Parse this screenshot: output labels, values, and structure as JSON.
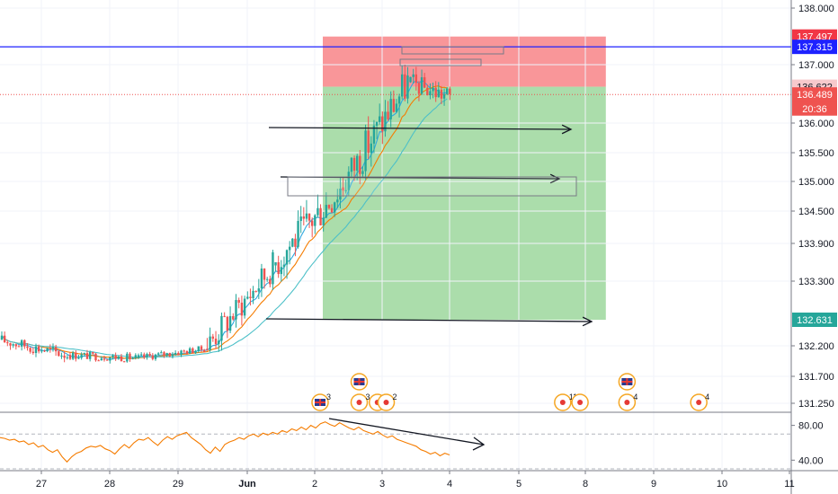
{
  "chart_data": {
    "type": "candlestick",
    "price_axis": {
      "ticks": [
        "138.000",
        "137.000",
        "136.000",
        "135.500",
        "135.000",
        "134.500",
        "133.900",
        "133.300",
        "132.200",
        "131.700",
        "131.250"
      ],
      "tick_values": [
        138.0,
        137.0,
        136.0,
        135.5,
        135.0,
        134.5,
        133.9,
        133.3,
        132.2,
        131.7,
        131.25
      ],
      "range": [
        131.15,
        138.2
      ]
    },
    "time_axis": {
      "ticks": [
        "27",
        "28",
        "29",
        "Jun",
        "2",
        "3",
        "4",
        "5",
        "8",
        "9",
        "10",
        "11"
      ],
      "bold": [
        "Jun"
      ]
    },
    "price_tags": [
      {
        "text": "137.497",
        "value": 137.497,
        "color": "#f23645"
      },
      {
        "text": "137.315",
        "value": 137.315,
        "color": "#1e22ff"
      },
      {
        "text": "136.622",
        "value": 136.622,
        "color": "#f7c9cc",
        "text_color": "#131722"
      },
      {
        "text": "136.489",
        "value": 136.489,
        "color": "#ef5350"
      },
      {
        "text": "20:36",
        "value": 136.25,
        "color": "#ef5350"
      },
      {
        "text": "132.631",
        "value": 132.631,
        "color": "#26a69a"
      }
    ],
    "horizontal_line": {
      "value": 137.315,
      "color": "#1e22ff"
    },
    "current_price_line": {
      "value": 136.489,
      "color": "#ef5350"
    },
    "position": {
      "side": "short",
      "entry": 136.622,
      "stop": 137.497,
      "target": 132.631,
      "start_day": 4.12,
      "end_day": 8.3
    },
    "moving_averages": [
      {
        "color": "#2ea8e0"
      },
      {
        "color": "#f57c00"
      },
      {
        "color": "#4dc0c8"
      }
    ],
    "events": [
      {
        "day": 4.08,
        "type": "flag",
        "count": "3"
      },
      {
        "day": 4.66,
        "type": "flag",
        "count": ""
      },
      {
        "day": 4.66,
        "type": "dot",
        "count": "3"
      },
      {
        "day": 4.93,
        "type": "dot",
        "count": "2"
      },
      {
        "day": 5.06,
        "type": "dot",
        "count": "2"
      },
      {
        "day": 7.66,
        "type": "dot",
        "count": "11"
      },
      {
        "day": 7.92,
        "type": "dot",
        "count": ""
      },
      {
        "day": 8.61,
        "type": "flag",
        "count": ""
      },
      {
        "day": 8.61,
        "type": "dot",
        "count": "4"
      },
      {
        "day": 9.66,
        "type": "dot",
        "count": "4"
      }
    ],
    "oscillator": {
      "ticks": [
        "80.00",
        "40.00"
      ],
      "tick_values": [
        80,
        40
      ],
      "range": [
        30,
        92
      ],
      "guide_levels": [
        70,
        30
      ],
      "values": [
        66,
        65,
        63,
        64,
        61,
        62,
        58,
        60,
        55,
        57,
        52,
        49,
        52,
        44,
        38,
        44,
        48,
        50,
        54,
        56,
        55,
        57,
        53,
        51,
        47,
        53,
        58,
        54,
        60,
        64,
        63,
        66,
        61,
        57,
        63,
        67,
        64,
        68,
        70,
        72,
        66,
        62,
        58,
        52,
        48,
        55,
        50,
        58,
        61,
        63,
        66,
        64,
        68,
        70,
        67,
        71,
        69,
        72,
        70,
        74,
        72,
        76,
        74,
        78,
        75,
        80,
        77,
        82,
        84,
        81,
        79,
        83,
        80,
        77,
        75,
        78,
        74,
        72,
        70,
        73,
        69,
        66,
        68,
        64,
        62,
        60,
        58,
        56,
        52,
        50,
        47,
        49,
        45,
        48,
        46
      ]
    },
    "daily_ohlc": [
      {
        "day": 1,
        "o": 132.3,
        "h": 132.46,
        "l": 131.76,
        "c": 132.05
      },
      {
        "day": 2,
        "o": 132.05,
        "h": 132.32,
        "l": 131.85,
        "c": 132.0
      },
      {
        "day": 3,
        "o": 132.0,
        "h": 132.35,
        "l": 131.95,
        "c": 132.15
      },
      {
        "day": 4,
        "o": 132.15,
        "h": 133.8,
        "l": 132.1,
        "c": 133.55
      },
      {
        "day": 5,
        "o": 133.55,
        "h": 135.4,
        "l": 133.2,
        "c": 134.9
      },
      {
        "day": 6,
        "o": 134.9,
        "h": 137.0,
        "l": 134.7,
        "c": 136.7
      },
      {
        "day": 7,
        "o": 136.7,
        "h": 137.35,
        "l": 136.1,
        "c": 136.3
      }
    ]
  }
}
